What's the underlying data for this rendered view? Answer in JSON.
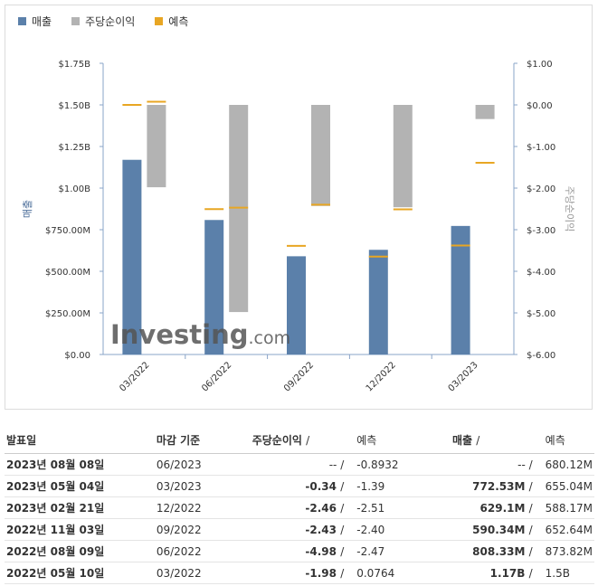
{
  "legend": {
    "revenue": "매출",
    "eps": "주당순이익",
    "forecast": "예측"
  },
  "colors": {
    "revenue": "#5b80aa",
    "eps": "#b3b3b3",
    "forecast": "#e8a623",
    "negative": "#e0161e",
    "positive": "#1c87d2"
  },
  "chart_data": {
    "type": "bar",
    "categories": [
      "03/2022",
      "06/2022",
      "09/2022",
      "12/2022",
      "03/2023"
    ],
    "left_axis": {
      "label": "매출",
      "range": [
        0,
        1.75
      ],
      "ticks": [
        "$0.00",
        "$250.00M",
        "$500.00M",
        "$750.00M",
        "$1.00B",
        "$1.25B",
        "$1.50B",
        "$1.75B"
      ]
    },
    "right_axis": {
      "label": "주당순이익",
      "range": [
        -6,
        1
      ],
      "ticks": [
        "$-6.00",
        "$-5.00",
        "$-4.00",
        "$-3.00",
        "$-2.00",
        "$-1.00",
        "$0.00",
        "$1.00"
      ]
    },
    "series": [
      {
        "name": "매출",
        "unit": "billion USD",
        "values": [
          1.17,
          0.80833,
          0.59034,
          0.6291,
          0.77253
        ]
      },
      {
        "name": "매출 예측",
        "unit": "billion USD",
        "values": [
          1.5,
          0.87382,
          0.65264,
          0.58817,
          0.65504
        ]
      },
      {
        "name": "주당순이익",
        "values": [
          -1.98,
          -4.98,
          -2.43,
          -2.46,
          -0.34
        ]
      },
      {
        "name": "주당순이익 예측",
        "values": [
          0.0764,
          -2.47,
          -2.4,
          -2.51,
          -1.39
        ]
      }
    ],
    "grid": false,
    "legend_position": "top-left"
  },
  "watermark": "Investing.com",
  "table": {
    "headers": {
      "date": "발표일",
      "period": "마감 기준",
      "eps": "주당순이익",
      "eps_sep": "/",
      "eps_forecast": "예측",
      "revenue": "매출",
      "revenue_sep": "/",
      "revenue_forecast": "예측"
    },
    "rows": [
      {
        "date": "2023년 08월 08일",
        "period": "06/2023",
        "eps": "--",
        "eps_forecast": "-0.8932",
        "revenue": "--",
        "revenue_forecast": "680.12M",
        "eps_class": "",
        "rev_class": ""
      },
      {
        "date": "2023년 05월 04일",
        "period": "03/2023",
        "eps": "-0.34",
        "eps_forecast": "-1.39",
        "revenue": "772.53M",
        "revenue_forecast": "655.04M",
        "eps_class": "neg",
        "rev_class": "neg"
      },
      {
        "date": "2023년 02월 21일",
        "period": "12/2022",
        "eps": "-2.46",
        "eps_forecast": "-2.51",
        "revenue": "629.1M",
        "revenue_forecast": "588.17M",
        "eps_class": "neg",
        "rev_class": "neg"
      },
      {
        "date": "2022년 11월 03일",
        "period": "09/2022",
        "eps": "-2.43",
        "eps_forecast": "-2.40",
        "revenue": "590.34M",
        "revenue_forecast": "652.64M",
        "eps_class": "pos",
        "rev_class": "pos"
      },
      {
        "date": "2022년 08월 09일",
        "period": "06/2022",
        "eps": "-4.98",
        "eps_forecast": "-2.47",
        "revenue": "808.33M",
        "revenue_forecast": "873.82M",
        "eps_class": "pos",
        "rev_class": "pos"
      },
      {
        "date": "2022년 05월 10일",
        "period": "03/2022",
        "eps": "-1.98",
        "eps_forecast": "0.0764",
        "revenue": "1.17B",
        "revenue_forecast": "1.5B",
        "eps_class": "pos",
        "rev_class": "pos"
      }
    ]
  }
}
